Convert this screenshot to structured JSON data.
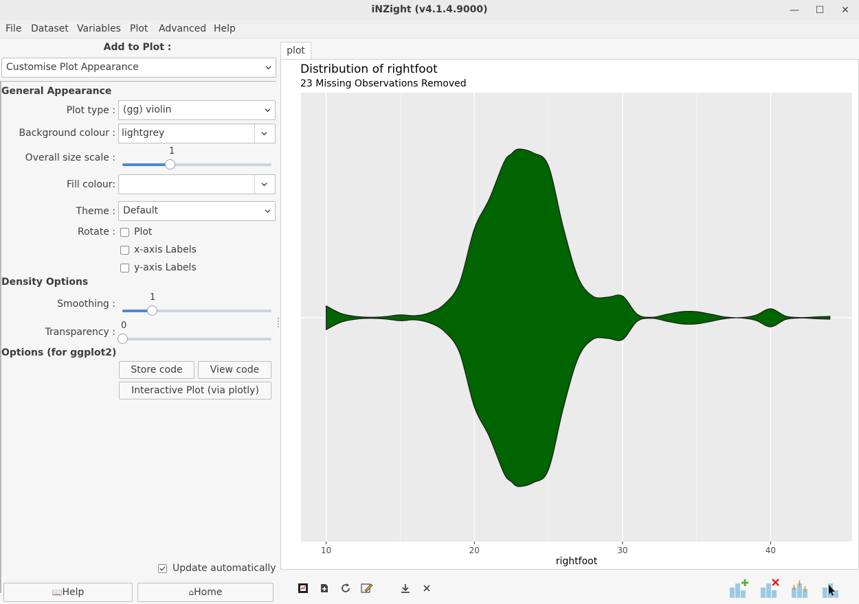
{
  "window": {
    "title": "iNZight (v4.1.4.9000)",
    "minimize": "—",
    "maximize": "☐",
    "close": "✕"
  },
  "menu": [
    "File",
    "Dataset",
    "Variables",
    "Plot",
    "Advanced",
    "Help"
  ],
  "left": {
    "add_to_plot": "Add to Plot :",
    "mode_select": "Customise Plot Appearance",
    "general_appearance": "General Appearance",
    "plot_type_label": "Plot type :",
    "plot_type_value": "(gg) violin",
    "bg_colour_label": "Background colour :",
    "bg_colour_value": "lightgrey",
    "size_scale_label": "Overall size scale :",
    "size_scale_value": "1",
    "size_scale_fraction": 0.32,
    "fill_colour_label": "Fill colour:",
    "fill_colour_value": "",
    "theme_label": "Theme :",
    "theme_value": "Default",
    "rotate_label": "Rotate :",
    "rotate_plot": "Plot",
    "rotate_x": "x-axis Labels",
    "rotate_y": "y-axis Labels",
    "density_options": "Density Options",
    "smoothing_label": "Smoothing :",
    "smoothing_value": "1",
    "smoothing_fraction": 0.2,
    "transparency_label": "Transparency :",
    "transparency_value": "0",
    "transparency_fraction": 0.0,
    "options_ggplot": "Options (for ggplot2)",
    "store_code": "Store code",
    "view_code": "View code",
    "interactive_plot": "Interactive Plot (via plotly)",
    "update_auto": "Update automatically",
    "help_btn": "Help",
    "home_btn": "Home"
  },
  "plot": {
    "tab": "plot",
    "title": "Distribution of rightfoot",
    "subtitle": "23 Missing Observations Removed",
    "fill_color": "#006400",
    "bg_color": "#ebebeb"
  },
  "chart_data": {
    "type": "violin",
    "title": "Distribution of rightfoot",
    "subtitle": "23 Missing Observations Removed",
    "xlabel": "rightfoot",
    "ylabel": "",
    "xlim": [
      8.3,
      45.5
    ],
    "x_ticks": [
      "10",
      "20",
      "30",
      "40"
    ],
    "x_tick_values": [
      10,
      20,
      30,
      40
    ],
    "grid": true,
    "fill": "#006400",
    "density_x": [
      10,
      11,
      12,
      13,
      14,
      15,
      16,
      17,
      18,
      19,
      20,
      21,
      22,
      22.5,
      23,
      24,
      25,
      26,
      27,
      28,
      29,
      30,
      31,
      32,
      33,
      34,
      35,
      36,
      37,
      38,
      39,
      40,
      41,
      42,
      43,
      44
    ],
    "density_half_width": [
      0.068,
      0.025,
      0.008,
      0.003,
      0.007,
      0.017,
      0.012,
      0.03,
      0.08,
      0.2,
      0.51,
      0.68,
      0.892,
      0.94,
      0.968,
      0.945,
      0.872,
      0.52,
      0.232,
      0.124,
      0.118,
      0.125,
      0.02,
      0.003,
      0.02,
      0.035,
      0.035,
      0.02,
      0.004,
      0.001,
      0.015,
      0.052,
      0.01,
      0.001,
      0.005,
      0.008
    ]
  },
  "toolbar": {
    "icons": [
      "new-plot-icon",
      "add-icon",
      "refresh-icon",
      "edit-icon",
      "download-icon",
      "close-icon"
    ],
    "right_icons": [
      "add-plot-icon",
      "remove-plot-icon",
      "inference-icon",
      "help-plot-icon"
    ]
  }
}
